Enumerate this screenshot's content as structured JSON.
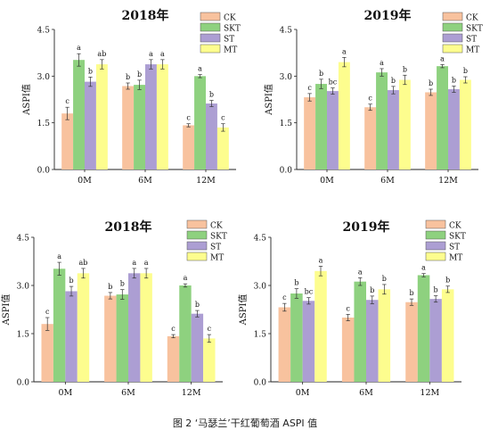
{
  "caption": "图 2 ‘马瑟兰’干红葡萄酒 ASPI 值",
  "colors": {
    "CK": "#F8C29E",
    "SKT": "#8ED17F",
    "ST": "#AC9ED3",
    "MT": "#FDFD8E"
  },
  "chart_data": [
    {
      "type": "bar",
      "title": "2018年",
      "ylabel": "ASPI值",
      "ylim": [
        0,
        4.5
      ],
      "yticks": [
        "0.0",
        "1.5",
        "3.0",
        "4.5"
      ],
      "legend_position": "top-right",
      "categories": [
        "0M",
        "6M",
        "12M"
      ],
      "series": [
        {
          "name": "CK",
          "values": [
            1.8,
            2.68,
            1.42
          ],
          "errors": [
            0.2,
            0.1,
            0.05
          ],
          "labels": [
            "c",
            "b",
            "c"
          ]
        },
        {
          "name": "SKT",
          "values": [
            3.52,
            2.72,
            3.0
          ],
          "errors": [
            0.2,
            0.15,
            0.05
          ],
          "labels": [
            "a",
            "b",
            "a"
          ]
        },
        {
          "name": "ST",
          "values": [
            2.82,
            3.38,
            2.12
          ],
          "errors": [
            0.15,
            0.15,
            0.1
          ],
          "labels": [
            "b",
            "a",
            "b"
          ]
        },
        {
          "name": "MT",
          "values": [
            3.38,
            3.38,
            1.35
          ],
          "errors": [
            0.15,
            0.15,
            0.12
          ],
          "labels": [
            "ab",
            "a",
            "c"
          ]
        }
      ]
    },
    {
      "type": "bar",
      "title": "2019年",
      "ylabel": "ASPI值",
      "ylim": [
        0,
        4.5
      ],
      "yticks": [
        "0.0",
        "1.5",
        "3.0",
        "4.5"
      ],
      "legend_position": "top-right",
      "categories": [
        "0M",
        "6M",
        "12M"
      ],
      "series": [
        {
          "name": "CK",
          "values": [
            2.32,
            2.0,
            2.48
          ],
          "errors": [
            0.12,
            0.1,
            0.1
          ],
          "labels": [
            "c",
            "c",
            "b"
          ]
        },
        {
          "name": "SKT",
          "values": [
            2.75,
            3.12,
            3.32
          ],
          "errors": [
            0.15,
            0.12,
            0.05
          ],
          "labels": [
            "b",
            "a",
            "a"
          ]
        },
        {
          "name": "ST",
          "values": [
            2.52,
            2.55,
            2.58
          ],
          "errors": [
            0.1,
            0.12,
            0.1
          ],
          "labels": [
            "bc",
            "b",
            "b"
          ]
        },
        {
          "name": "MT",
          "values": [
            3.45,
            2.88,
            2.88
          ],
          "errors": [
            0.15,
            0.15,
            0.1
          ],
          "labels": [
            "a",
            "b",
            "b"
          ]
        }
      ]
    },
    {
      "type": "bar",
      "title": "2018年",
      "ylabel": "ASPI值",
      "ylim": [
        0,
        4.5
      ],
      "yticks": [
        "0.0",
        "1.5",
        "3.0",
        "4.5"
      ],
      "legend_position": "top-right",
      "categories": [
        "0M",
        "6M",
        "12M"
      ],
      "series": [
        {
          "name": "CK",
          "values": [
            1.8,
            2.68,
            1.42
          ],
          "errors": [
            0.2,
            0.1,
            0.05
          ],
          "labels": [
            "c",
            "b",
            "c"
          ]
        },
        {
          "name": "SKT",
          "values": [
            3.52,
            2.72,
            3.0
          ],
          "errors": [
            0.2,
            0.15,
            0.05
          ],
          "labels": [
            "a",
            "b",
            "a"
          ]
        },
        {
          "name": "ST",
          "values": [
            2.82,
            3.38,
            2.12
          ],
          "errors": [
            0.15,
            0.15,
            0.1
          ],
          "labels": [
            "b",
            "a",
            "b"
          ]
        },
        {
          "name": "MT",
          "values": [
            3.38,
            3.38,
            1.35
          ],
          "errors": [
            0.15,
            0.15,
            0.12
          ],
          "labels": [
            "ab",
            "a",
            "c"
          ]
        }
      ]
    },
    {
      "type": "bar",
      "title": "2019年",
      "ylabel": "ASPI值",
      "ylim": [
        0,
        4.5
      ],
      "yticks": [
        "0.0",
        "1.5",
        "3.0",
        "4.5"
      ],
      "legend_position": "top-right",
      "categories": [
        "0M",
        "6M",
        "12M"
      ],
      "series": [
        {
          "name": "CK",
          "values": [
            2.32,
            2.0,
            2.48
          ],
          "errors": [
            0.12,
            0.1,
            0.1
          ],
          "labels": [
            "c",
            "c",
            "b"
          ]
        },
        {
          "name": "SKT",
          "values": [
            2.75,
            3.12,
            3.32
          ],
          "errors": [
            0.15,
            0.12,
            0.05
          ],
          "labels": [
            "b",
            "a",
            "a"
          ]
        },
        {
          "name": "ST",
          "values": [
            2.52,
            2.55,
            2.58
          ],
          "errors": [
            0.1,
            0.12,
            0.1
          ],
          "labels": [
            "bc",
            "b",
            "b"
          ]
        },
        {
          "name": "MT",
          "values": [
            3.45,
            2.88,
            2.88
          ],
          "errors": [
            0.15,
            0.15,
            0.1
          ],
          "labels": [
            "a",
            "b",
            "b"
          ]
        }
      ]
    }
  ]
}
